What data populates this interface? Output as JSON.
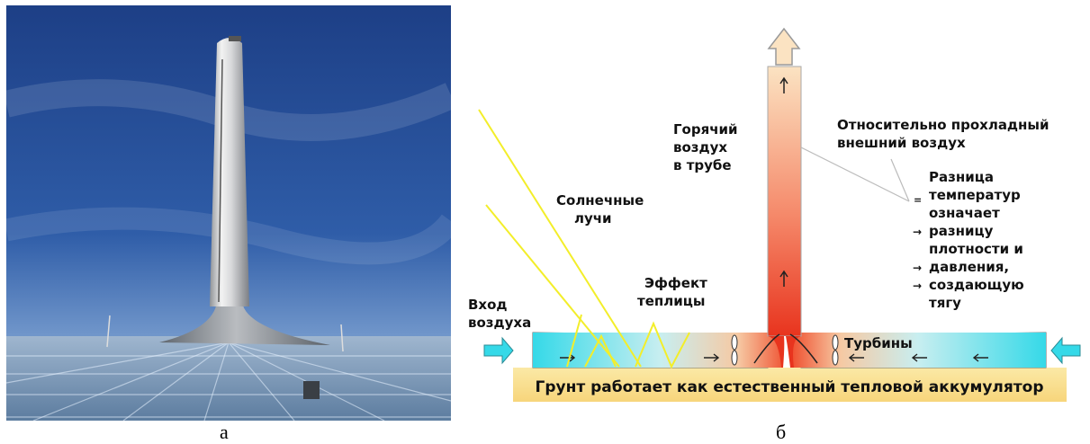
{
  "panel_a": {
    "caption": "а",
    "description_icons": [
      "solar-tower-photo"
    ]
  },
  "panel_b": {
    "caption": "б",
    "labels": {
      "hot_air": [
        "Горячий",
        "воздух",
        "в трубе"
      ],
      "cool_air": [
        "Относительно прохладный",
        "внешний воздух"
      ],
      "sun_rays": [
        "Солнечные",
        "лучи"
      ],
      "greenhouse": [
        "Эффект",
        "теплицы"
      ],
      "air_inlet": [
        "Вход",
        "воздуха"
      ],
      "turbines": "Турбины",
      "ground": "Грунт работает как естественный тепловой аккумулятор",
      "explanation": [
        {
          "mark": "=",
          "text": "Разница"
        },
        {
          "mark": "",
          "text": "температур"
        },
        {
          "mark": "",
          "text": "означает"
        },
        {
          "mark": "→",
          "text": "разницу"
        },
        {
          "mark": "",
          "text": "плотности и"
        },
        {
          "mark": "→",
          "text": "давления,"
        },
        {
          "mark": "→",
          "text": "создающую"
        },
        {
          "mark": "",
          "text": "тягу"
        }
      ]
    }
  }
}
